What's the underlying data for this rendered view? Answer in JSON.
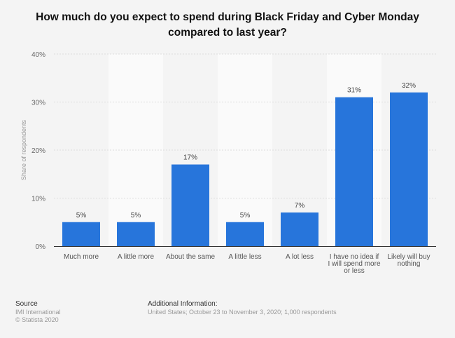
{
  "chart_data": {
    "type": "bar",
    "title": "How much do you expect to spend during Black Friday and Cyber Monday compared to last year?",
    "ylabel": "Share of respondents",
    "xlabel": "",
    "ylim": [
      0,
      40
    ],
    "yticks": [
      "0%",
      "10%",
      "20%",
      "30%",
      "40%"
    ],
    "ytick_values": [
      0,
      10,
      20,
      30,
      40
    ],
    "grid": true,
    "categories": [
      "Much more",
      "A little more",
      "About the same",
      "A little less",
      "A lot less",
      "I have no idea if I will spend more or less",
      "Likely will buy nothing"
    ],
    "category_lines": [
      [
        "Much more"
      ],
      [
        "A little more"
      ],
      [
        "About the same"
      ],
      [
        "A little less"
      ],
      [
        "A lot less"
      ],
      [
        "I have no idea if",
        "I will spend more",
        "or less"
      ],
      [
        "Likely will buy",
        "nothing"
      ]
    ],
    "values": [
      5,
      5,
      17,
      5,
      7,
      31,
      32
    ],
    "data_labels": [
      "5%",
      "5%",
      "17%",
      "5%",
      "7%",
      "31%",
      "32%"
    ],
    "colors": {
      "bar": "#2775db",
      "band": "#fafafa",
      "background": "#f4f4f4"
    }
  },
  "footer": {
    "source_label": "Source",
    "source": "IMI International",
    "copyright": "© Statista 2020",
    "additional_label": "Additional Information:",
    "additional": "United States; October 23 to November 3, 2020; 1,000 respondents"
  }
}
